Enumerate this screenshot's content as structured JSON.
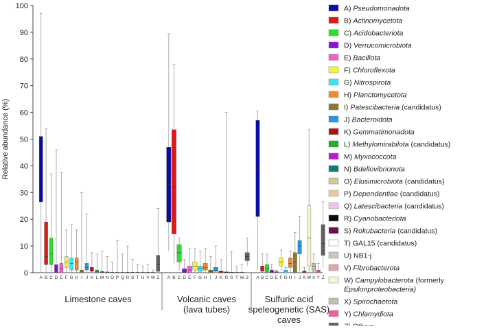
{
  "chart_data": {
    "type": "boxplot",
    "ylabel": "Relative abundance (%)",
    "ylim": [
      0,
      100
    ],
    "yticks": [
      0,
      10,
      20,
      30,
      40,
      50,
      60,
      70,
      80,
      90,
      100
    ],
    "legend": [
      {
        "code": "A",
        "text": "Pseudomonadota",
        "italic": true,
        "suffix": "",
        "color": "#0a0aa8"
      },
      {
        "code": "B",
        "text": "Actinomycetota",
        "italic": true,
        "suffix": "",
        "color": "#e01717"
      },
      {
        "code": "C",
        "text": "Acidobacteriota",
        "italic": true,
        "suffix": "",
        "color": "#2ae02a"
      },
      {
        "code": "D",
        "text": "Verrucomicrobiota",
        "italic": true,
        "suffix": "",
        "color": "#8b14d8"
      },
      {
        "code": "E",
        "text": "Bacillota",
        "italic": true,
        "suffix": "",
        "color": "#ee5fd0"
      },
      {
        "code": "F",
        "text": "Chloroflexota",
        "italic": true,
        "suffix": "",
        "color": "#f4f23a"
      },
      {
        "code": "G",
        "text": "Nitrospirota",
        "italic": true,
        "suffix": "",
        "color": "#3ee6ea"
      },
      {
        "code": "H",
        "text": "Planctomycetota",
        "italic": true,
        "suffix": "",
        "color": "#f08a2a"
      },
      {
        "code": "I",
        "text": "Patescibacteria",
        "italic": true,
        "suffix": " (candidatus)",
        "color": "#8a7a2a"
      },
      {
        "code": "J",
        "text": "Bacteroidota",
        "italic": true,
        "suffix": "",
        "color": "#2796e4"
      },
      {
        "code": "K",
        "text": "Gemmatimonadota",
        "italic": true,
        "suffix": "",
        "color": "#a81616"
      },
      {
        "code": "L",
        "text": "Methylomirabilota",
        "italic": true,
        "suffix": " (candidatus)",
        "color": "#22b02a"
      },
      {
        "code": "M",
        "text": "Myxococcota",
        "italic": true,
        "suffix": "",
        "color": "#b81ed0"
      },
      {
        "code": "N",
        "text": "Bdellovibrionota",
        "italic": true,
        "suffix": "",
        "color": "#137a7a"
      },
      {
        "code": "O",
        "text": "Elusimicrobiota",
        "italic": true,
        "suffix": " (candidatus)",
        "color": "#cfc796"
      },
      {
        "code": "P",
        "text": "Dependentiae",
        "italic": true,
        "suffix": " (candidatus)",
        "color": "#f2c49a"
      },
      {
        "code": "Q",
        "text": "Latescibacteria",
        "italic": true,
        "suffix": " (candidatus)",
        "color": "#f2c4ec"
      },
      {
        "code": "R",
        "text": "Cyanobacteriota",
        "italic": true,
        "suffix": "",
        "color": "#0a0a0a"
      },
      {
        "code": "S",
        "text": "Rokubacteria",
        "italic": true,
        "suffix": " (candidatus)",
        "color": "#6a1050"
      },
      {
        "code": "T",
        "text": "GAL15 (candidatus)",
        "italic": false,
        "suffix": "",
        "color": "#ffffff"
      },
      {
        "code": "U",
        "text": "NB1-j",
        "italic": false,
        "suffix": "",
        "color": "#c8c8c8"
      },
      {
        "code": "V",
        "text": "Fibrobacterota",
        "italic": true,
        "suffix": "",
        "color": "#dcaaaa"
      },
      {
        "code": "W",
        "text": "Campylobacterota",
        "italic": true,
        "suffix": " (formerly",
        "line2": "Epsilonproteobacteria)",
        "color": "#f8f6d2"
      },
      {
        "code": "X",
        "text": "Spirochaetota",
        "italic": true,
        "suffix": "",
        "color": "#b8c4b0"
      },
      {
        "code": "Y",
        "text": "Chlamydiota",
        "italic": true,
        "suffix": "",
        "color": "#f25aa8"
      },
      {
        "code": "Z",
        "text": "Others",
        "italic": false,
        "suffix": "",
        "color": "#606060"
      }
    ],
    "groups": [
      {
        "label_lines": [
          "Limestone caves"
        ],
        "boxes": [
          {
            "cat": "A",
            "q1": 26.5,
            "median": 40,
            "q3": 51,
            "whisker_low": 0,
            "whisker_high": 97
          },
          {
            "cat": "B",
            "q1": 3,
            "median": 6,
            "q3": 19,
            "whisker_low": 0,
            "whisker_high": 54
          },
          {
            "cat": "C",
            "q1": 3,
            "median": 7,
            "q3": 13,
            "whisker_low": 0,
            "whisker_high": 37
          },
          {
            "cat": "D",
            "q1": 0,
            "median": 1,
            "q3": 3,
            "whisker_low": 0,
            "whisker_high": 46
          },
          {
            "cat": "E",
            "q1": 0,
            "median": 1.5,
            "q3": 3.5,
            "whisker_low": 0,
            "whisker_high": 37.5
          },
          {
            "cat": "F",
            "q1": 2,
            "median": 4,
            "q3": 6,
            "whisker_low": 0,
            "whisker_high": 16
          },
          {
            "cat": "G",
            "q1": 1,
            "median": 3.5,
            "q3": 5.5,
            "whisker_low": 0,
            "whisker_high": 18
          },
          {
            "cat": "H",
            "q1": 1,
            "median": 4,
            "q3": 5.5,
            "whisker_low": 0,
            "whisker_high": 16
          },
          {
            "cat": "I",
            "q1": 0,
            "median": 0.5,
            "q3": 1,
            "whisker_low": 0,
            "whisker_high": 30
          },
          {
            "cat": "J",
            "q1": 1,
            "median": 2,
            "q3": 3.5,
            "whisker_low": 0,
            "whisker_high": 22
          },
          {
            "cat": "K",
            "q1": 0.5,
            "median": 1,
            "q3": 2,
            "whisker_low": 0,
            "whisker_high": 7.5
          },
          {
            "cat": "L",
            "q1": 0,
            "median": 0.5,
            "q3": 1,
            "whisker_low": 0,
            "whisker_high": 7
          },
          {
            "cat": "M",
            "q1": 0,
            "median": 0.2,
            "q3": 0.5,
            "whisker_low": 0,
            "whisker_high": 8
          },
          {
            "cat": "N",
            "q1": 0,
            "median": 0.1,
            "q3": 0.3,
            "whisker_low": 0,
            "whisker_high": 6
          },
          {
            "cat": "O",
            "q1": 0,
            "median": 0.1,
            "q3": 0.2,
            "whisker_low": 0,
            "whisker_high": 4
          },
          {
            "cat": "P",
            "q1": 0,
            "median": 0.1,
            "q3": 0.2,
            "whisker_low": 0,
            "whisker_high": 12
          },
          {
            "cat": "Q",
            "q1": 0,
            "median": 0.1,
            "q3": 0.2,
            "whisker_low": 0,
            "whisker_high": 7
          },
          {
            "cat": "R",
            "q1": 0,
            "median": 0.1,
            "q3": 0.2,
            "whisker_low": 0,
            "whisker_high": 10
          },
          {
            "cat": "S",
            "q1": 0,
            "median": 0.1,
            "q3": 0.2,
            "whisker_low": 0,
            "whisker_high": 5
          },
          {
            "cat": "T",
            "q1": 0,
            "median": 0.1,
            "q3": 0.2,
            "whisker_low": 0,
            "whisker_high": 3
          },
          {
            "cat": "U",
            "q1": 0,
            "median": 0.1,
            "q3": 0.2,
            "whisker_low": 0,
            "whisker_high": 2.5
          },
          {
            "cat": "V",
            "q1": 0,
            "median": 0.1,
            "q3": 0.2,
            "whisker_low": 0,
            "whisker_high": 3
          },
          {
            "cat": "W",
            "q1": 0,
            "median": 0.1,
            "q3": 0.2,
            "whisker_low": 0,
            "whisker_high": 1
          },
          {
            "cat": "Z",
            "q1": 0.5,
            "median": 3,
            "q3": 6.5,
            "whisker_low": 0,
            "whisker_high": 24
          }
        ]
      },
      {
        "label_lines": [
          "Volcanic caves",
          "(lava tubes)"
        ],
        "boxes": [
          {
            "cat": "A",
            "q1": 19,
            "median": 33,
            "q3": 47,
            "whisker_low": 8,
            "whisker_high": 89.5
          },
          {
            "cat": "B",
            "q1": 14.5,
            "median": 32,
            "q3": 53.5,
            "whisker_low": 3,
            "whisker_high": 78
          },
          {
            "cat": "C",
            "q1": 4,
            "median": 7.5,
            "q3": 10.5,
            "whisker_low": 0.5,
            "whisker_high": 13
          },
          {
            "cat": "D",
            "q1": 0,
            "median": 0.5,
            "q3": 1.5,
            "whisker_low": 0,
            "whisker_high": 5
          },
          {
            "cat": "E",
            "q1": 0,
            "median": 1,
            "q3": 2.5,
            "whisker_low": 0,
            "whisker_high": 9
          },
          {
            "cat": "F",
            "q1": 1,
            "median": 2.5,
            "q3": 4,
            "whisker_low": 0,
            "whisker_high": 9
          },
          {
            "cat": "G",
            "q1": 0.5,
            "median": 1.5,
            "q3": 2.5,
            "whisker_low": 0,
            "whisker_high": 8
          },
          {
            "cat": "H",
            "q1": 1,
            "median": 2,
            "q3": 3.5,
            "whisker_low": 0,
            "whisker_high": 9
          },
          {
            "cat": "I",
            "q1": 0,
            "median": 0.5,
            "q3": 1,
            "whisker_low": 0,
            "whisker_high": 6
          },
          {
            "cat": "J",
            "q1": 0.5,
            "median": 1,
            "q3": 2,
            "whisker_low": 0,
            "whisker_high": 10
          },
          {
            "cat": "K",
            "q1": 0,
            "median": 0.3,
            "q3": 0.6,
            "whisker_low": 0,
            "whisker_high": 5
          },
          {
            "cat": "R",
            "q1": 0,
            "median": 0.1,
            "q3": 0.3,
            "whisker_low": 0,
            "whisker_high": 60
          },
          {
            "cat": "S",
            "q1": 0,
            "median": 0.1,
            "q3": 0.2,
            "whisker_low": 0,
            "whisker_high": 8
          },
          {
            "cat": "T",
            "q1": 0,
            "median": 0.1,
            "q3": 0.2,
            "whisker_low": 0,
            "whisker_high": 2.5
          },
          {
            "cat": "W",
            "q1": 0,
            "median": 0.1,
            "q3": 0.2,
            "whisker_low": 0,
            "whisker_high": 3
          },
          {
            "cat": "Z",
            "q1": 4.5,
            "median": 6,
            "q3": 7.5,
            "whisker_low": 2.5,
            "whisker_high": 13
          }
        ]
      },
      {
        "label_lines": [
          "Sulfuric acid",
          "speleogenetic (SAS)",
          "caves"
        ],
        "boxes": [
          {
            "cat": "A",
            "q1": 21,
            "median": 39,
            "q3": 57,
            "whisker_low": 1,
            "whisker_high": 60.5
          },
          {
            "cat": "B",
            "q1": 0.5,
            "median": 1.5,
            "q3": 2.5,
            "whisker_low": 0,
            "whisker_high": 7
          },
          {
            "cat": "C",
            "q1": 0,
            "median": 1.5,
            "q3": 3,
            "whisker_low": 0,
            "whisker_high": 7
          },
          {
            "cat": "D",
            "q1": 0,
            "median": 0.5,
            "q3": 1,
            "whisker_low": 0,
            "whisker_high": 3
          },
          {
            "cat": "E",
            "q1": 0,
            "median": 0.2,
            "q3": 0.5,
            "whisker_low": 0,
            "whisker_high": 1
          },
          {
            "cat": "F",
            "q1": 2.5,
            "median": 4,
            "q3": 5.5,
            "whisker_low": 0.5,
            "whisker_high": 8.5
          },
          {
            "cat": "G",
            "q1": 0,
            "median": 0.5,
            "q3": 1,
            "whisker_low": 0,
            "whisker_high": 2
          },
          {
            "cat": "H",
            "q1": 2,
            "median": 3.5,
            "q3": 5.5,
            "whisker_low": 0,
            "whisker_high": 8
          },
          {
            "cat": "I",
            "q1": 0,
            "median": 4,
            "q3": 7.5,
            "whisker_low": 0,
            "whisker_high": 15
          },
          {
            "cat": "J",
            "q1": 7,
            "median": 10,
            "q3": 12,
            "whisker_low": 0.5,
            "whisker_high": 21
          },
          {
            "cat": "K",
            "q1": 0,
            "median": 0.3,
            "q3": 0.6,
            "whisker_low": 0,
            "whisker_high": 2
          },
          {
            "cat": "W",
            "q1": 2.5,
            "median": 13,
            "q3": 25,
            "whisker_low": 0,
            "whisker_high": 53.5
          },
          {
            "cat": "X",
            "q1": 0.5,
            "median": 2.5,
            "q3": 3.5,
            "whisker_low": 0,
            "whisker_high": 7
          },
          {
            "cat": "Y",
            "q1": 0,
            "median": 0.5,
            "q3": 1,
            "whisker_low": 0,
            "whisker_high": 3.5
          },
          {
            "cat": "Z",
            "q1": 6.5,
            "median": 11,
            "q3": 18,
            "whisker_low": 2,
            "whisker_high": 26.5
          }
        ]
      }
    ]
  }
}
